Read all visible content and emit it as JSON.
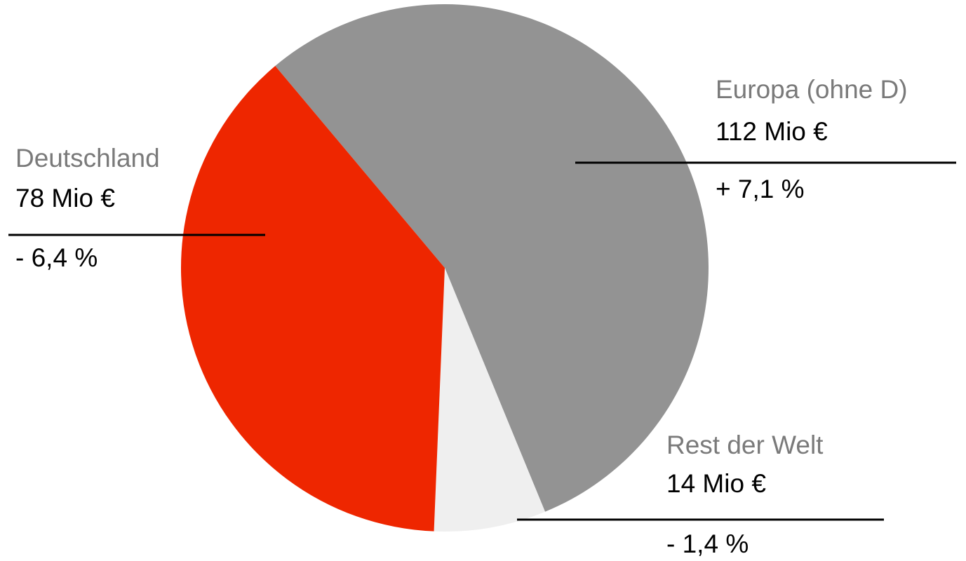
{
  "chart_data": {
    "type": "pie",
    "categories": [
      "Europa (ohne D)",
      "Rest der Welt",
      "Deutschland"
    ],
    "values": [
      112,
      14,
      78
    ],
    "value_labels": [
      "112 Mio €",
      "14 Mio €",
      "78 Mio €"
    ],
    "changes": [
      "+ 7,1 %",
      "- 1,4 %",
      "- 6,4 %"
    ],
    "colors": [
      "#939393",
      "#efefef",
      "#ee2600"
    ]
  }
}
